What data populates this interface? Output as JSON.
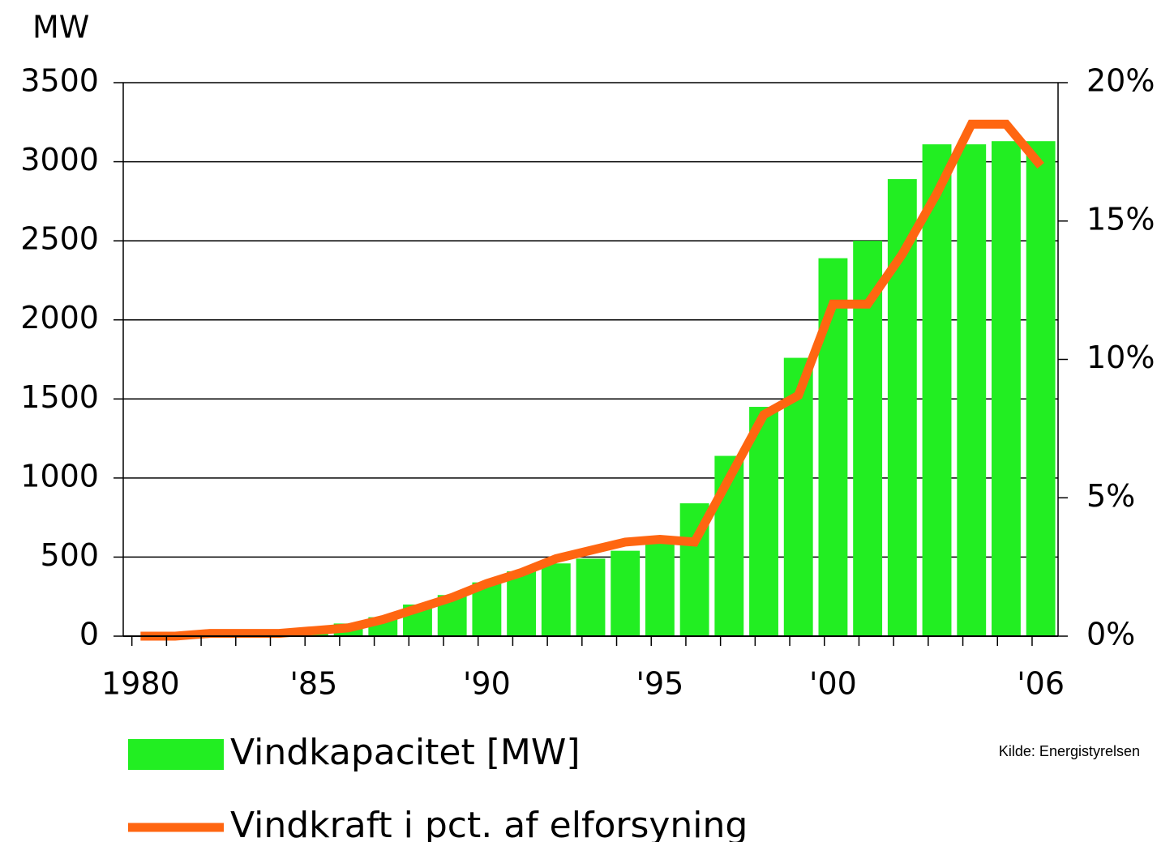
{
  "chart_data": {
    "type": "bar",
    "y_label": "MW",
    "source": "Kilde: Energistyrelsen",
    "categories": [
      "1980",
      null,
      null,
      null,
      null,
      "'85",
      null,
      null,
      null,
      null,
      "'90",
      null,
      null,
      null,
      null,
      "'95",
      null,
      null,
      null,
      null,
      "'00",
      null,
      null,
      null,
      null,
      null,
      "'06"
    ],
    "series": [
      {
        "name": "Vindkapacitet [MW]",
        "type": "bar",
        "color": "#22ee22",
        "values": [
          3,
          7,
          12,
          15,
          20,
          50,
          80,
          120,
          200,
          260,
          340,
          410,
          460,
          490,
          540,
          610,
          840,
          1140,
          1450,
          1760,
          2390,
          2500,
          2890,
          3110,
          3110,
          3130,
          3130
        ]
      },
      {
        "name": "Vindkraft i pct. af elforsyning",
        "type": "line",
        "axis": "y2",
        "color": "#ff6611",
        "values": [
          0,
          0,
          0.1,
          0.1,
          0.1,
          0.2,
          0.3,
          0.6,
          1.0,
          1.4,
          1.9,
          2.3,
          2.8,
          3.1,
          3.4,
          3.5,
          3.4,
          5.7,
          8.0,
          8.7,
          12.0,
          12.0,
          13.8,
          16.0,
          18.5,
          18.5,
          17.0
        ]
      }
    ],
    "ylim": [
      0,
      3500
    ],
    "yticks": [
      0,
      500,
      1000,
      1500,
      2000,
      2500,
      3000,
      3500
    ],
    "y2lim": [
      0,
      20
    ],
    "y2ticks": [
      {
        "value": 0,
        "label": "0%"
      },
      {
        "value": 5,
        "label": "5%"
      },
      {
        "value": 10,
        "label": "10%"
      },
      {
        "value": 15,
        "label": "15%"
      },
      {
        "value": 20,
        "label": "20%"
      }
    ],
    "grid": true
  }
}
